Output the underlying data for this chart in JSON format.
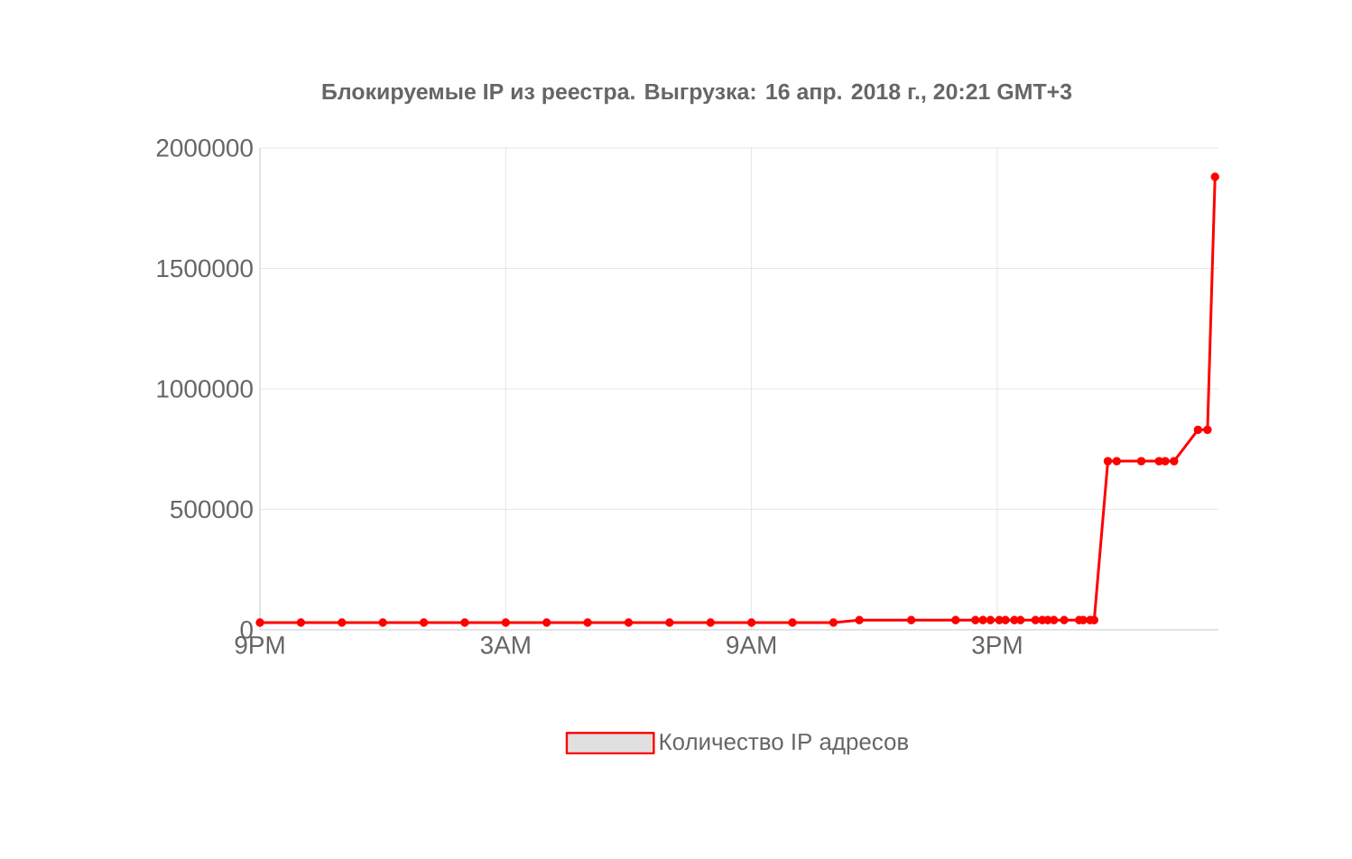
{
  "chart_data": {
    "type": "line",
    "title": "Блокируемые IP из реестра. Выгрузка: 16 апр. 2018 г., 20:21 GMT+3",
    "x": [
      "2018-04-15T21:00",
      "2018-04-15T22:00",
      "2018-04-15T23:00",
      "2018-04-16T00:00",
      "2018-04-16T01:00",
      "2018-04-16T02:00",
      "2018-04-16T03:00",
      "2018-04-16T04:00",
      "2018-04-16T05:00",
      "2018-04-16T06:00",
      "2018-04-16T07:00",
      "2018-04-16T08:00",
      "2018-04-16T09:00",
      "2018-04-16T10:00",
      "2018-04-16T11:00",
      "2018-04-16T11:38",
      "2018-04-16T12:54",
      "2018-04-16T13:59",
      "2018-04-16T14:28",
      "2018-04-16T14:39",
      "2018-04-16T14:50",
      "2018-04-16T15:03",
      "2018-04-16T15:12",
      "2018-04-16T15:25",
      "2018-04-16T15:34",
      "2018-04-16T15:56",
      "2018-04-16T16:06",
      "2018-04-16T16:14",
      "2018-04-16T16:23",
      "2018-04-16T16:38",
      "2018-04-16T17:00",
      "2018-04-16T17:06",
      "2018-04-16T17:16",
      "2018-04-16T17:22",
      "2018-04-16T17:42",
      "2018-04-16T17:55",
      "2018-04-16T18:31",
      "2018-04-16T18:57",
      "2018-04-16T19:06",
      "2018-04-16T19:19",
      "2018-04-16T19:54",
      "2018-04-16T20:08",
      "2018-04-16T20:19"
    ],
    "series": [
      {
        "name": "Количество IP адресов",
        "color": "#ff0000",
        "values": [
          30000,
          30000,
          30000,
          30000,
          30000,
          30000,
          30000,
          30000,
          30000,
          30000,
          30000,
          30000,
          30000,
          30000,
          30000,
          40000,
          40000,
          40000,
          40000,
          40000,
          40000,
          40000,
          40000,
          40000,
          40000,
          40000,
          40000,
          40000,
          40000,
          40000,
          40000,
          40000,
          40000,
          40000,
          700000,
          700000,
          700000,
          700000,
          700000,
          700000,
          830000,
          830000,
          1880000
        ]
      }
    ],
    "xlim": [
      "2018-04-15T21:00",
      "2018-04-16T20:24"
    ],
    "xticks": [
      {
        "value": "2018-04-15T21:00",
        "label": "9PM"
      },
      {
        "value": "2018-04-16T03:00",
        "label": "3AM"
      },
      {
        "value": "2018-04-16T09:00",
        "label": "9AM"
      },
      {
        "value": "2018-04-16T15:00",
        "label": "3PM"
      }
    ],
    "ylim": [
      0,
      2000000
    ],
    "yticks": [
      0,
      500000,
      1000000,
      1500000,
      2000000
    ],
    "grid": true,
    "legend": "bottom",
    "marker": "circle",
    "line_style": "solid"
  }
}
